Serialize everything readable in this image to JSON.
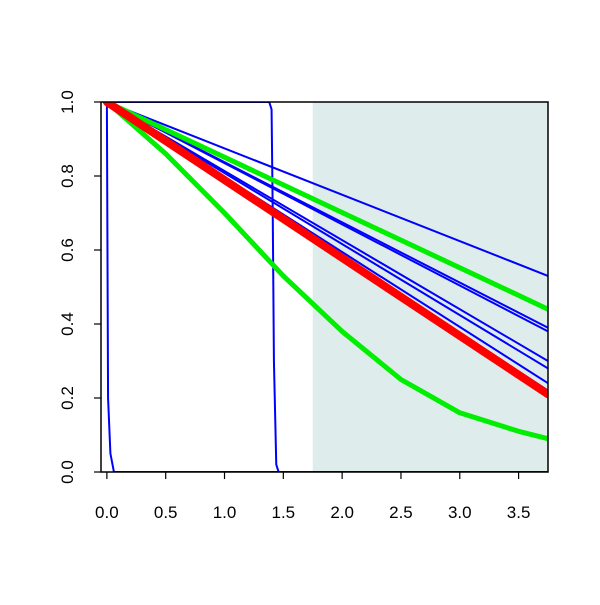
{
  "chart_data": {
    "type": "line",
    "title": "",
    "xlabel": "",
    "ylabel": "",
    "xlim": [
      -0.05,
      3.75
    ],
    "ylim": [
      0,
      1.0
    ],
    "x_ticks": [
      "0.0",
      "0.5",
      "1.0",
      "1.5",
      "2.0",
      "2.5",
      "3.0",
      "3.5"
    ],
    "y_ticks": [
      "0.0",
      "0.2",
      "0.4",
      "0.6",
      "0.8",
      "1.0"
    ],
    "shaded_region": {
      "x_start": 1.75,
      "x_end": 3.75,
      "color": "#dfecec"
    },
    "grid": false,
    "legend": "none",
    "series": [
      {
        "color": "#0000ff",
        "emphasis": "thin",
        "points": [
          [
            0.0,
            1.0
          ],
          [
            3.75,
            0.53
          ]
        ]
      },
      {
        "color": "#0000ff",
        "emphasis": "thin",
        "points": [
          [
            0.0,
            1.0
          ],
          [
            3.75,
            0.39
          ]
        ]
      },
      {
        "color": "#0000ff",
        "emphasis": "thin",
        "points": [
          [
            0.0,
            1.0
          ],
          [
            3.75,
            0.38
          ]
        ]
      },
      {
        "color": "#0000ff",
        "emphasis": "thin",
        "points": [
          [
            0.0,
            1.0
          ],
          [
            3.75,
            0.3
          ]
        ]
      },
      {
        "color": "#0000ff",
        "emphasis": "thin",
        "points": [
          [
            0.0,
            1.0
          ],
          [
            3.75,
            0.28
          ]
        ]
      },
      {
        "color": "#0000ff",
        "emphasis": "thin",
        "points": [
          [
            0.0,
            1.0
          ],
          [
            3.75,
            0.24
          ]
        ]
      },
      {
        "color": "#0000ff",
        "emphasis": "thin",
        "points": [
          [
            0.0,
            1.0
          ],
          [
            3.75,
            0.22
          ]
        ]
      },
      {
        "color": "#0000ff",
        "emphasis": "thin",
        "points": [
          [
            0.0,
            1.0
          ],
          [
            3.75,
            0.21
          ]
        ]
      },
      {
        "color": "#0000ff",
        "emphasis": "thin",
        "points": [
          [
            0.0,
            1.0
          ],
          [
            0.005,
            0.6
          ],
          [
            0.01,
            0.2
          ],
          [
            0.03,
            0.05
          ],
          [
            0.06,
            0.0
          ],
          [
            3.75,
            0.0
          ]
        ]
      },
      {
        "color": "#0000ff",
        "emphasis": "thin",
        "points": [
          [
            0.0,
            1.0
          ],
          [
            1.38,
            1.0
          ],
          [
            1.4,
            0.98
          ],
          [
            1.41,
            0.7
          ],
          [
            1.42,
            0.3
          ],
          [
            1.44,
            0.02
          ],
          [
            1.46,
            0.0
          ],
          [
            3.75,
            0.0
          ]
        ]
      },
      {
        "color": "#00ee00",
        "emphasis": "thick",
        "points": [
          [
            0.0,
            1.0
          ],
          [
            3.75,
            0.44
          ]
        ]
      },
      {
        "color": "#00ee00",
        "emphasis": "thick",
        "points": [
          [
            0.0,
            1.0
          ],
          [
            0.5,
            0.86
          ],
          [
            1.0,
            0.7
          ],
          [
            1.5,
            0.53
          ],
          [
            2.0,
            0.38
          ],
          [
            2.5,
            0.25
          ],
          [
            3.0,
            0.16
          ],
          [
            3.5,
            0.11
          ],
          [
            3.75,
            0.09
          ]
        ]
      },
      {
        "color": "#ff0000",
        "emphasis": "thickest",
        "points": [
          [
            0.0,
            1.0
          ],
          [
            3.75,
            0.21
          ]
        ]
      }
    ]
  }
}
